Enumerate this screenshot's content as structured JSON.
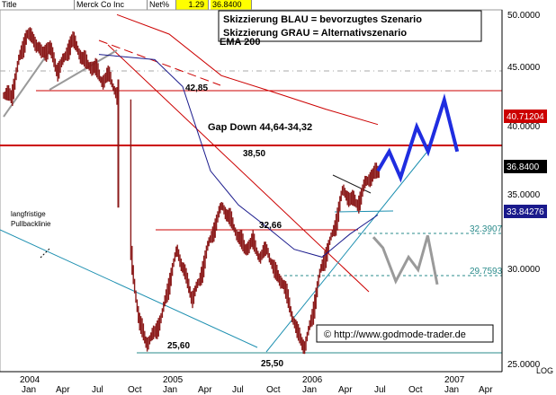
{
  "header": {
    "title_label": "Title",
    "symbol": "Merck Co Inc",
    "change_label": "Net%",
    "change_value": "1.29",
    "last_price": "36.8400"
  },
  "colors": {
    "price_bars": "#8b1a1a",
    "ema_200": "#cc0000",
    "ma_blue": "#1a1a8c",
    "support_lines": "#cc0000",
    "trend_lines": "#1c8fb0",
    "scenario_blue": "#1f2de0",
    "scenario_grey": "#9a9a9a",
    "last_price_box": "#000000",
    "ema_box": "#cc0000",
    "ma_box": "#1a1a8c"
  },
  "chart_data": {
    "type": "candlestick",
    "ylim": [
      24.5,
      51.5
    ],
    "y_scale": "log",
    "yticks": [
      "50.0000",
      "45.0000",
      "40.0000",
      "35.0000",
      "30.0000",
      "25.0000"
    ],
    "y_extra_label": "LOG",
    "year_labels": [
      "2004",
      "2005",
      "2006",
      "2007"
    ],
    "month_labels": [
      "Jan",
      "Apr",
      "Jul",
      "Oct",
      "Jan",
      "Apr",
      "Jul",
      "Oct",
      "Jan",
      "Apr",
      "Jul",
      "Oct",
      "Jan",
      "Apr"
    ],
    "price_labels": [
      {
        "value": 40.71204,
        "text": "40.71204",
        "series": "EMA 200"
      },
      {
        "value": 36.84,
        "text": "36.8400",
        "series": "Last price"
      },
      {
        "value": 33.84276,
        "text": "33.84276",
        "series": "Blue MA"
      }
    ],
    "level_labels": [
      {
        "value": 32.3907,
        "text": "32.3907"
      },
      {
        "value": 29.7593,
        "text": "29.7593"
      }
    ],
    "annotations": {
      "legend_blue": "Skizzierung BLAU = bevorzugtes Szenario",
      "legend_grey": "Skizzierung GRAU = Alternativszenario",
      "ema": "EMA 200",
      "level_4285": "42,85",
      "gap": "Gap Down 44,64-34,32",
      "level_3850": "38,50",
      "level_3266": "32,66",
      "level_2560": "25,60",
      "level_2550": "25,50",
      "pullback_line1": "langfristige",
      "pullback_line2": "Pullbacklinie",
      "copyright": "© http://www.godmode-trader.de"
    },
    "horizontal_levels": [
      42.85,
      38.5,
      32.66,
      32.39,
      29.76,
      25.5
    ],
    "series": [
      {
        "name": "Price",
        "kind": "bars",
        "points": [
          [
            0.02,
            43.2
          ],
          [
            0.04,
            46.5
          ],
          [
            0.06,
            49.0
          ],
          [
            0.08,
            48.5
          ],
          [
            0.1,
            47.0
          ],
          [
            0.12,
            47.8
          ],
          [
            0.14,
            45.5
          ],
          [
            0.16,
            46.5
          ],
          [
            0.18,
            48.5
          ],
          [
            0.2,
            47.2
          ],
          [
            0.22,
            46.0
          ],
          [
            0.24,
            45.8
          ],
          [
            0.26,
            44.5
          ],
          [
            0.28,
            45.0
          ],
          [
            0.3,
            43.2
          ],
          [
            0.32,
            38.0
          ],
          [
            0.34,
            30.5
          ],
          [
            0.36,
            27.0
          ],
          [
            0.38,
            26.0
          ],
          [
            0.4,
            26.5
          ],
          [
            0.42,
            27.5
          ],
          [
            0.44,
            29.5
          ],
          [
            0.46,
            31.5
          ],
          [
            0.48,
            30.0
          ],
          [
            0.5,
            28.5
          ],
          [
            0.52,
            29.5
          ],
          [
            0.54,
            31.5
          ],
          [
            0.56,
            33.0
          ],
          [
            0.58,
            34.5
          ],
          [
            0.6,
            33.5
          ],
          [
            0.62,
            32.5
          ],
          [
            0.64,
            31.5
          ],
          [
            0.66,
            32.0
          ],
          [
            0.68,
            31.0
          ],
          [
            0.7,
            31.5
          ],
          [
            0.72,
            30.0
          ],
          [
            0.74,
            29.5
          ],
          [
            0.76,
            28.0
          ],
          [
            0.78,
            26.5
          ],
          [
            0.8,
            25.8
          ],
          [
            0.82,
            27.5
          ],
          [
            0.84,
            30.0
          ],
          [
            0.86,
            31.5
          ],
          [
            0.88,
            33.0
          ],
          [
            0.9,
            35.5
          ],
          [
            0.92,
            35.0
          ],
          [
            0.94,
            34.5
          ],
          [
            0.96,
            36.0
          ],
          [
            0.98,
            36.8
          ]
        ]
      },
      {
        "name": "EMA 200",
        "kind": "line",
        "points": [
          [
            0.0,
            51.0
          ],
          [
            0.2,
            49.0
          ],
          [
            0.4,
            45.0
          ],
          [
            0.6,
            43.5
          ],
          [
            0.8,
            42.0
          ],
          [
            1.0,
            40.7
          ]
        ]
      },
      {
        "name": "Blue MA",
        "kind": "line",
        "points": [
          [
            0.0,
            47.0
          ],
          [
            0.2,
            46.5
          ],
          [
            0.3,
            44.0
          ],
          [
            0.4,
            37.0
          ],
          [
            0.5,
            34.5
          ],
          [
            0.6,
            33.0
          ],
          [
            0.7,
            31.5
          ],
          [
            0.8,
            31.0
          ],
          [
            0.9,
            32.5
          ],
          [
            1.0,
            33.8
          ]
        ]
      },
      {
        "name": "Scenario blue",
        "kind": "sketch",
        "points": [
          [
            0.0,
            37.0
          ],
          [
            0.14,
            38.5
          ],
          [
            0.28,
            36.5
          ],
          [
            0.48,
            40.5
          ],
          [
            0.62,
            38.5
          ],
          [
            0.82,
            42.8
          ],
          [
            0.98,
            38.5
          ]
        ]
      },
      {
        "name": "Scenario grey",
        "kind": "sketch",
        "points": [
          [
            0.0,
            32.3
          ],
          [
            0.15,
            31.6
          ],
          [
            0.35,
            29.5
          ],
          [
            0.55,
            31.0
          ],
          [
            0.7,
            30.2
          ],
          [
            0.85,
            32.4
          ],
          [
            1.0,
            29.3
          ]
        ]
      }
    ]
  }
}
